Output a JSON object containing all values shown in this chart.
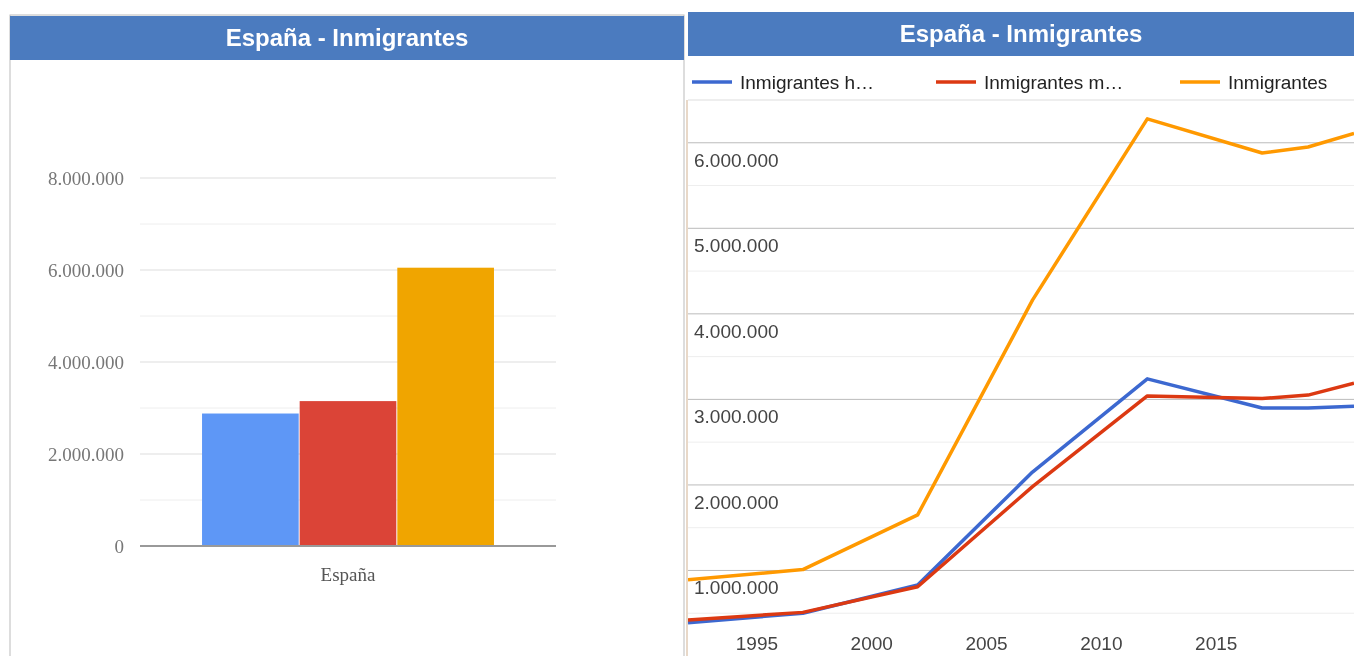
{
  "chart_data": [
    {
      "type": "bar",
      "title": "España - Inmigrantes",
      "categories": [
        "España"
      ],
      "series": [
        {
          "color": "#5e97f6",
          "values": [
            2880000
          ]
        },
        {
          "color": "#db4437",
          "values": [
            3150000
          ]
        },
        {
          "color": "#f0a500",
          "values": [
            6050000
          ]
        }
      ],
      "ylim": [
        0,
        8000000
      ],
      "yticks": [
        {
          "value": 0,
          "label": "0"
        },
        {
          "value": 1000000,
          "label": null
        },
        {
          "value": 2000000,
          "label": "2.000.000"
        },
        {
          "value": 3000000,
          "label": null
        },
        {
          "value": 4000000,
          "label": "4.000.000"
        },
        {
          "value": 5000000,
          "label": null
        },
        {
          "value": 6000000,
          "label": "6.000.000"
        },
        {
          "value": 7000000,
          "label": null
        },
        {
          "value": 8000000,
          "label": "8.000.000"
        }
      ],
      "grid": "y"
    },
    {
      "type": "line",
      "title": "España - Inmigrantes",
      "x": [
        1992,
        1997,
        2002,
        2007,
        2012,
        2017,
        2019,
        2021
      ],
      "series": [
        {
          "name": "Inmigrantes h…",
          "color": "#3c68d0",
          "values": [
            390000,
            500000,
            830000,
            2150000,
            3240000,
            2900000,
            2900000,
            2920000
          ]
        },
        {
          "name": "Inmigrantes m…",
          "color": "#dc3912",
          "values": [
            420000,
            510000,
            810000,
            1980000,
            3040000,
            3010000,
            3050000,
            3190000
          ]
        },
        {
          "name": "Inmigrantes",
          "color": "#ff9900",
          "values": [
            890000,
            1010000,
            1650000,
            4160000,
            6280000,
            5880000,
            5950000,
            6110000
          ]
        }
      ],
      "xlim": [
        1992,
        2021
      ],
      "xticks": [
        1995,
        2000,
        2005,
        2010,
        2015
      ],
      "ylim": [
        0,
        6500000
      ],
      "yticks": [
        {
          "value": 500000,
          "label": null
        },
        {
          "value": 1000000,
          "label": "1.000.000"
        },
        {
          "value": 1500000,
          "label": null
        },
        {
          "value": 2000000,
          "label": "2.000.000"
        },
        {
          "value": 2500000,
          "label": null
        },
        {
          "value": 3000000,
          "label": "3.000.000"
        },
        {
          "value": 3500000,
          "label": null
        },
        {
          "value": 4000000,
          "label": "4.000.000"
        },
        {
          "value": 4500000,
          "label": null
        },
        {
          "value": 5000000,
          "label": "5.000.000"
        },
        {
          "value": 5500000,
          "label": null
        },
        {
          "value": 6000000,
          "label": "6.000.000"
        }
      ],
      "grid": "y",
      "legend": "top"
    }
  ]
}
